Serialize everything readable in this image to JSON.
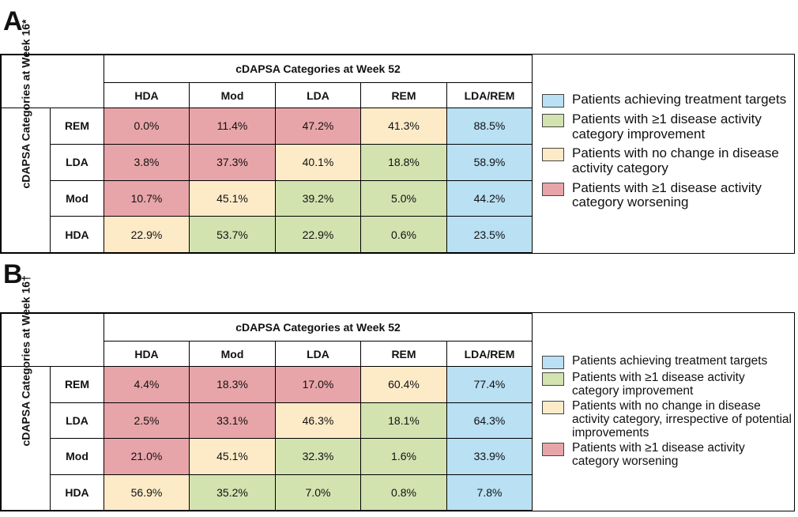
{
  "panels": [
    {
      "label": "A",
      "table": {
        "col_group": "cDAPSA Categories at Week 52",
        "row_group": "cDAPSA Categories at Week 16*",
        "columns": [
          "HDA",
          "Mod",
          "LDA",
          "REM",
          "LDA/REM"
        ],
        "rows": [
          {
            "label": "REM",
            "cells": [
              "0.0%",
              "11.4%",
              "47.2%",
              "41.3%",
              "88.5%"
            ],
            "colors": [
              "#e8a5a9",
              "#e8a5a9",
              "#e8a5a9",
              "#fdebc8",
              "#b9e0f3"
            ]
          },
          {
            "label": "LDA",
            "cells": [
              "3.8%",
              "37.3%",
              "40.1%",
              "18.8%",
              "58.9%"
            ],
            "colors": [
              "#e8a5a9",
              "#e8a5a9",
              "#fdebc8",
              "#d2e3b0",
              "#b9e0f3"
            ]
          },
          {
            "label": "Mod",
            "cells": [
              "10.7%",
              "45.1%",
              "39.2%",
              "5.0%",
              "44.2%"
            ],
            "colors": [
              "#e8a5a9",
              "#fdebc8",
              "#d2e3b0",
              "#d2e3b0",
              "#b9e0f3"
            ]
          },
          {
            "label": "HDA",
            "cells": [
              "22.9%",
              "53.7%",
              "22.9%",
              "0.6%",
              "23.5%"
            ],
            "colors": [
              "#fdebc8",
              "#d2e3b0",
              "#d2e3b0",
              "#d2e3b0",
              "#b9e0f3"
            ]
          }
        ]
      },
      "legend": [
        {
          "color": "#b9e0f3",
          "text": "Patients achieving treatment targets"
        },
        {
          "color": "#d2e3b0",
          "text": "Patients with ≥1 disease activity category improvement"
        },
        {
          "color": "#fdebc8",
          "text": "Patients with no change in disease activity category"
        },
        {
          "color": "#e8a5a9",
          "text": "Patients with ≥1 disease activity category worsening"
        }
      ]
    },
    {
      "label": "B",
      "table": {
        "col_group": "cDAPSA Categories at Week 52",
        "row_group": "cDAPSA Categories at Week 16†",
        "columns": [
          "HDA",
          "Mod",
          "LDA",
          "REM",
          "LDA/REM"
        ],
        "rows": [
          {
            "label": "REM",
            "cells": [
              "4.4%",
              "18.3%",
              "17.0%",
              "60.4%",
              "77.4%"
            ],
            "colors": [
              "#e8a5a9",
              "#e8a5a9",
              "#e8a5a9",
              "#fdebc8",
              "#b9e0f3"
            ]
          },
          {
            "label": "LDA",
            "cells": [
              "2.5%",
              "33.1%",
              "46.3%",
              "18.1%",
              "64.3%"
            ],
            "colors": [
              "#e8a5a9",
              "#e8a5a9",
              "#fdebc8",
              "#d2e3b0",
              "#b9e0f3"
            ]
          },
          {
            "label": "Mod",
            "cells": [
              "21.0%",
              "45.1%",
              "32.3%",
              "1.6%",
              "33.9%"
            ],
            "colors": [
              "#e8a5a9",
              "#fdebc8",
              "#d2e3b0",
              "#d2e3b0",
              "#b9e0f3"
            ]
          },
          {
            "label": "HDA",
            "cells": [
              "56.9%",
              "35.2%",
              "7.0%",
              "0.8%",
              "7.8%"
            ],
            "colors": [
              "#fdebc8",
              "#d2e3b0",
              "#d2e3b0",
              "#d2e3b0",
              "#b9e0f3"
            ]
          }
        ]
      },
      "legend": [
        {
          "color": "#b9e0f3",
          "text": "Patients achieving treatment targets"
        },
        {
          "color": "#d2e3b0",
          "text": "Patients with ≥1 disease activity category improvement"
        },
        {
          "color": "#fdebc8",
          "text": "Patients with no change in disease activity category, irrespective of potential improvements"
        },
        {
          "color": "#e8a5a9",
          "text": "Patients with ≥1 disease activity category worsening"
        }
      ]
    }
  ]
}
